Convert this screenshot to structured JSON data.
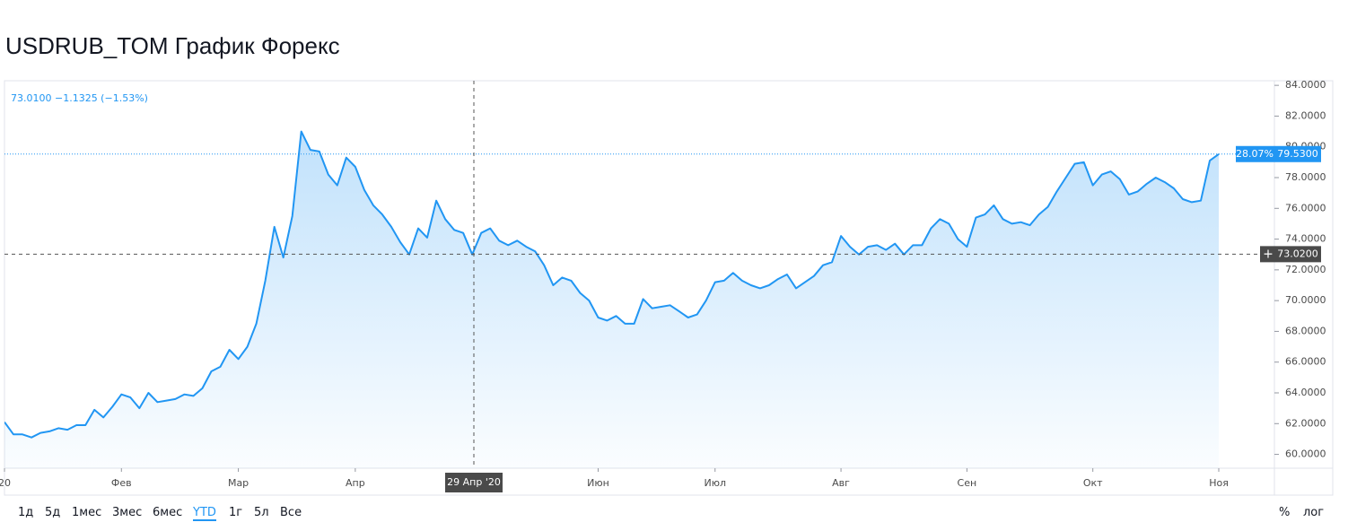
{
  "title": "USDRUB_TOM График Форекс",
  "chart_data": {
    "type": "line",
    "legend_label": "73.0100 −1.1325 (−1.53%)",
    "color": "#2196f3",
    "grid": false,
    "categories": [
      "20",
      null,
      null,
      null,
      null,
      null,
      null,
      null,
      null,
      null,
      null,
      null,
      null,
      "Фев",
      null,
      null,
      null,
      null,
      null,
      null,
      null,
      null,
      null,
      null,
      null,
      null,
      "Мар",
      null,
      null,
      null,
      null,
      null,
      null,
      null,
      null,
      null,
      null,
      null,
      null,
      "Апр",
      null,
      null,
      null,
      null,
      null,
      null,
      null,
      null,
      null,
      null,
      null,
      null,
      null,
      null,
      null,
      null,
      null,
      null,
      null,
      null,
      null,
      null,
      null,
      null,
      null,
      null,
      "Июн",
      null,
      null,
      null,
      null,
      null,
      null,
      null,
      null,
      null,
      null,
      null,
      null,
      "Июл",
      null,
      null,
      null,
      null,
      null,
      null,
      null,
      null,
      null,
      null,
      null,
      null,
      null,
      "Авг",
      null,
      null,
      null,
      null,
      null,
      null,
      null,
      null,
      null,
      null,
      null,
      null,
      null,
      "Сен",
      null,
      null,
      null,
      null,
      null,
      null,
      null,
      null,
      null,
      null,
      null,
      null,
      null,
      "Окт",
      null,
      null,
      null,
      null,
      null,
      null,
      null,
      null,
      null,
      null,
      null,
      null,
      null,
      "Ноя"
    ],
    "values": [
      62.1,
      61.3,
      61.3,
      61.1,
      61.4,
      61.5,
      61.7,
      61.6,
      61.9,
      61.9,
      62.9,
      62.4,
      63.1,
      63.9,
      63.7,
      63.0,
      64.0,
      63.4,
      63.5,
      63.6,
      63.9,
      63.8,
      64.3,
      65.4,
      65.7,
      66.8,
      66.2,
      67.0,
      68.5,
      71.3,
      74.8,
      72.8,
      75.5,
      81.0,
      79.8,
      79.7,
      78.2,
      77.5,
      79.3,
      78.7,
      77.2,
      76.2,
      75.6,
      74.8,
      73.8,
      73.0,
      74.7,
      74.1,
      76.5,
      75.3,
      74.6,
      74.4,
      73.0,
      74.4,
      74.7,
      73.9,
      73.6,
      73.9,
      73.5,
      73.2,
      72.3,
      71.0,
      71.5,
      71.3,
      70.5,
      70.0,
      68.9,
      68.7,
      69.0,
      68.5,
      68.5,
      70.1,
      69.5,
      69.6,
      69.7,
      69.3,
      68.9,
      69.1,
      70.0,
      71.2,
      71.3,
      71.8,
      71.3,
      71.0,
      70.8,
      71.0,
      71.4,
      71.7,
      70.8,
      71.2,
      71.6,
      72.3,
      72.5,
      74.2,
      73.5,
      73.0,
      73.5,
      73.6,
      73.3,
      73.7,
      73.0,
      73.6,
      73.6,
      74.7,
      75.3,
      75.0,
      74.0,
      73.5,
      75.4,
      75.6,
      76.2,
      75.3,
      75.0,
      75.1,
      74.9,
      75.6,
      76.1,
      77.1,
      78.0,
      78.9,
      79.0,
      77.5,
      78.2,
      78.4,
      77.9,
      76.9,
      77.1,
      77.6,
      78.0,
      77.7,
      77.3,
      76.6,
      76.4,
      76.5,
      79.1,
      79.53
    ],
    "ylim": [
      59.1,
      84.3
    ],
    "yticks": [
      {
        "value": 60,
        "label": "60.0000"
      },
      {
        "value": 62,
        "label": "62.0000"
      },
      {
        "value": 64,
        "label": "64.0000"
      },
      {
        "value": 66,
        "label": "66.0000"
      },
      {
        "value": 68,
        "label": "68.0000"
      },
      {
        "value": 70,
        "label": "70.0000"
      },
      {
        "value": 72,
        "label": "72.0000"
      },
      {
        "value": 74,
        "label": "74.0000"
      },
      {
        "value": 76,
        "label": "76.0000"
      },
      {
        "value": 78,
        "label": "78.0000"
      },
      {
        "value": 80,
        "label": "80.0000"
      },
      {
        "value": 82,
        "label": "82.0000"
      },
      {
        "value": 84,
        "label": "84.0000"
      }
    ],
    "last_price": {
      "value": 79.53,
      "label": "79.5300",
      "change_label": "28.07%"
    },
    "crosshair": {
      "x_label": "29 Апр '20",
      "y_value": 73.02,
      "y_label": "73.0200"
    }
  },
  "toolbar": {
    "ranges": [
      {
        "label": "1д"
      },
      {
        "label": "5д"
      },
      {
        "label": "1мес"
      },
      {
        "label": "3мес"
      },
      {
        "label": "6мес"
      },
      {
        "label": "YTD",
        "selected": true
      },
      {
        "label": "1г"
      },
      {
        "label": "5л"
      },
      {
        "label": "Все"
      }
    ],
    "percent": "%",
    "log": "лог"
  }
}
